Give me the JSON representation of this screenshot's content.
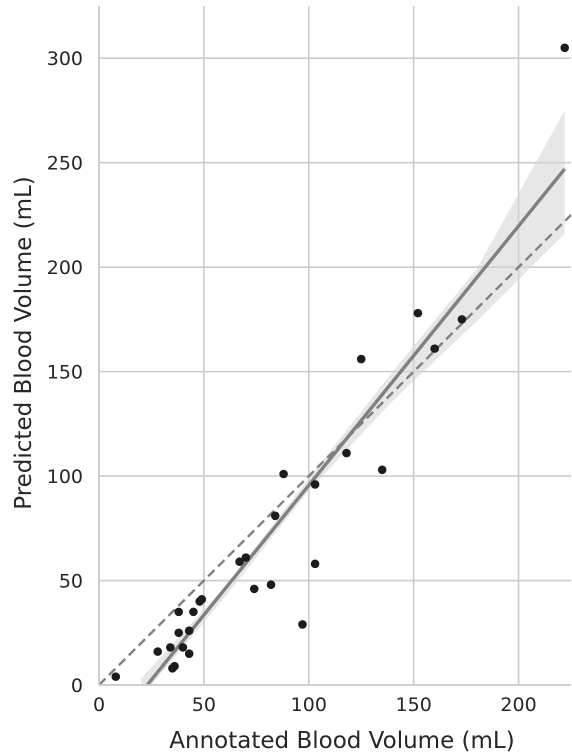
{
  "chart_data": {
    "type": "scatter",
    "title": "",
    "xlabel": "Annotated Blood Volume (mL)",
    "ylabel": "Predicted Blood Volume (mL)",
    "xlim": [
      0,
      225
    ],
    "ylim": [
      0,
      325
    ],
    "x_ticks": [
      0,
      50,
      100,
      150,
      200
    ],
    "y_ticks": [
      0,
      50,
      100,
      150,
      200,
      250,
      300
    ],
    "grid": true,
    "points": [
      {
        "x": 8,
        "y": 4
      },
      {
        "x": 28,
        "y": 16
      },
      {
        "x": 34,
        "y": 18
      },
      {
        "x": 35,
        "y": 8
      },
      {
        "x": 36,
        "y": 9
      },
      {
        "x": 38,
        "y": 35
      },
      {
        "x": 38,
        "y": 25
      },
      {
        "x": 40,
        "y": 18
      },
      {
        "x": 43,
        "y": 26
      },
      {
        "x": 43,
        "y": 15
      },
      {
        "x": 45,
        "y": 35
      },
      {
        "x": 48,
        "y": 40
      },
      {
        "x": 49,
        "y": 41
      },
      {
        "x": 67,
        "y": 59
      },
      {
        "x": 70,
        "y": 61
      },
      {
        "x": 74,
        "y": 46
      },
      {
        "x": 82,
        "y": 48
      },
      {
        "x": 84,
        "y": 81
      },
      {
        "x": 88,
        "y": 101
      },
      {
        "x": 97,
        "y": 29
      },
      {
        "x": 103,
        "y": 96
      },
      {
        "x": 103,
        "y": 58
      },
      {
        "x": 118,
        "y": 111
      },
      {
        "x": 125,
        "y": 156
      },
      {
        "x": 135,
        "y": 103
      },
      {
        "x": 152,
        "y": 178
      },
      {
        "x": 160,
        "y": 161
      },
      {
        "x": 173,
        "y": 175
      },
      {
        "x": 222,
        "y": 305
      }
    ],
    "regression_line": {
      "x0": 23,
      "y0": 0,
      "x1": 222,
      "y1": 247
    },
    "confidence_band": {
      "x": [
        20,
        60,
        100,
        140,
        180,
        222
      ],
      "lower": [
        -6,
        42,
        93,
        136,
        174,
        216
      ],
      "upper": [
        3,
        47,
        99,
        150,
        199,
        275
      ]
    },
    "identity_line": {
      "x0": 0,
      "y0": 0,
      "x1": 225,
      "y1": 225
    },
    "colors": {
      "points": "#1c1c1c",
      "regression": "#808080",
      "band": "#d3d3d3",
      "identity": "#808080",
      "grid": "#cccccc",
      "axis": "#cccccc"
    }
  }
}
